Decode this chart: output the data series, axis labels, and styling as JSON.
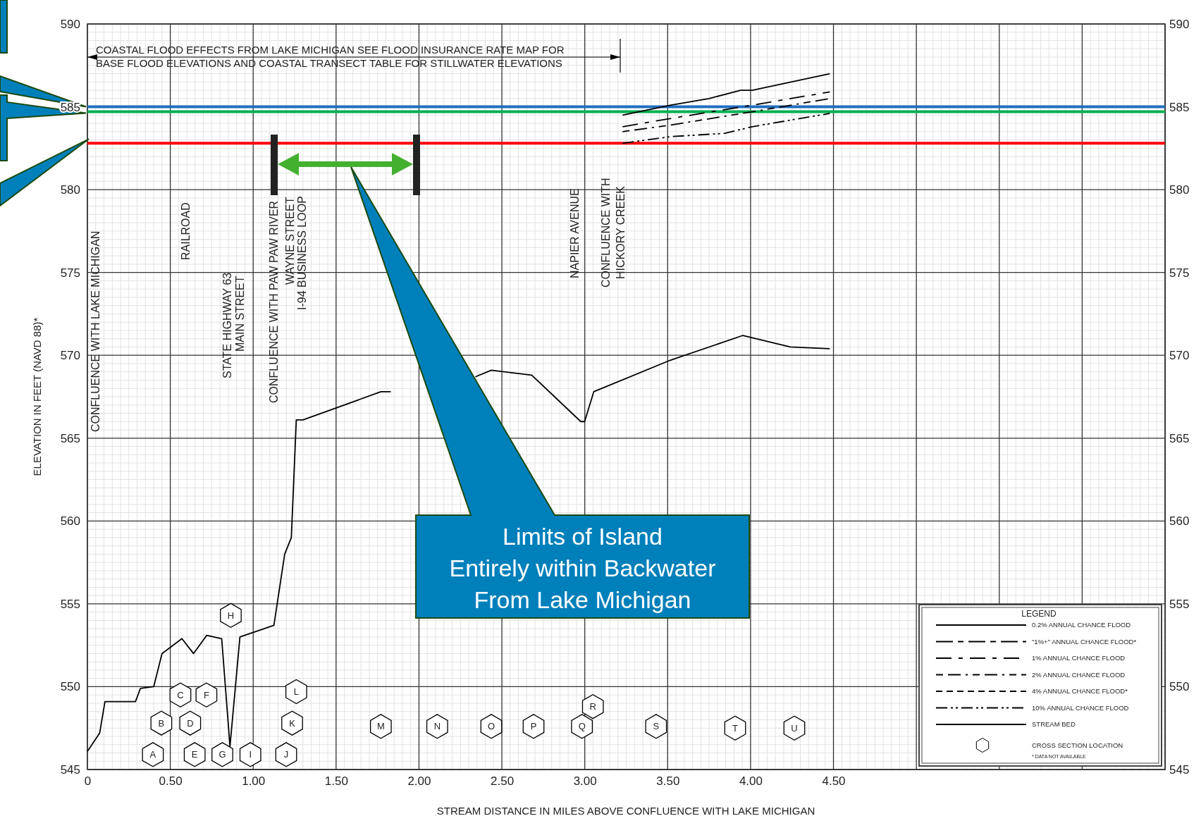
{
  "chart_data": {
    "type": "line",
    "xlabel": "STREAM DISTANCE IN MILES ABOVE CONFLUENCE WITH LAKE MICHIGAN",
    "ylabel": "ELEVATION IN FEET (NAVD 88)*",
    "legend_title": "LEGEND",
    "legend": "bottom right",
    "grid": true,
    "xlim": [
      0,
      6.5
    ],
    "xticks": [
      0,
      {
        "value": 0.5,
        "label": "0.50"
      },
      {
        "value": 1,
        "label": "1.00"
      },
      {
        "value": 1.5,
        "label": "1.50"
      },
      {
        "value": 2,
        "label": "2.00"
      },
      {
        "value": 2.5,
        "label": "2.50"
      },
      {
        "value": 3,
        "label": "3.00"
      },
      {
        "value": 3.5,
        "label": "3.50"
      },
      {
        "value": 4,
        "label": "4.00"
      },
      {
        "value": 4.5,
        "label": "4.50"
      },
      {
        "value": 5,
        "label": null
      },
      {
        "value": 5.5,
        "label": null
      },
      {
        "value": 6,
        "label": null
      },
      {
        "value": 6.5,
        "label": null
      }
    ],
    "ylim": [
      545,
      590
    ],
    "yticks": [
      545,
      550,
      555,
      560,
      565,
      570,
      575,
      580,
      585,
      590
    ],
    "y2lim": [
      545,
      590
    ],
    "y2ticks": [
      545,
      550,
      555,
      560,
      565,
      570,
      575,
      580,
      585,
      590
    ],
    "series": [
      {
        "name": "0.2% ANNUAL CHANCE FLOOD",
        "color": "#000000",
        "line_style": "solid",
        "x": [
          3.228,
          3.52,
          3.75,
          3.94,
          4.01,
          4.478
        ],
        "values": [
          584.5,
          585.1,
          585.5,
          586.0,
          586.0,
          587.0
        ]
      },
      {
        "name": "\"1%+\" ANNUAL CHANCE FLOOD*",
        "color": "#000000",
        "line_style": "dashed"
      },
      {
        "name": "1% ANNUAL CHANCE FLOOD",
        "color": "#000000",
        "line_style": "dashed",
        "x": [
          3.228,
          3.52,
          4.01,
          4.478
        ],
        "values": [
          583.8,
          584.3,
          585.1,
          585.9
        ]
      },
      {
        "name": "2% ANNUAL CHANCE FLOOD",
        "color": "#000000",
        "line_style": "dashed",
        "x": [
          3.228,
          3.52,
          4.01,
          4.478
        ],
        "values": [
          583.5,
          583.9,
          584.7,
          585.5
        ]
      },
      {
        "name": "4% ANNUAL CHANCE FLOOD*",
        "color": "#000000",
        "line_style": "dashed"
      },
      {
        "name": "10% ANNUAL CHANCE FLOOD",
        "color": "#000000",
        "line_style": "dashed",
        "x": [
          3.228,
          3.52,
          3.845,
          4.01,
          4.478
        ],
        "values": [
          582.8,
          583.2,
          583.4,
          583.8,
          584.6
        ]
      },
      {
        "name": "STREAM BED",
        "color": "#000000",
        "line_style": "solid",
        "x": [
          0,
          0.074,
          0.106,
          0.29,
          0.32,
          0.4,
          0.45,
          0.57,
          0.64,
          0.72,
          0.81,
          0.86,
          0.92,
          1.125,
          1.19,
          1.23,
          1.26,
          1.3,
          1.77,
          1.83,
          2.06,
          2.34,
          2.436,
          2.68,
          2.976,
          2.999,
          3.054,
          3.515,
          3.954,
          4.24,
          4.478
        ],
        "values": [
          546.1,
          547.2,
          549.1,
          549.1,
          549.9,
          550.0,
          552.0,
          552.9,
          552.0,
          553.1,
          552.9,
          546.4,
          553.0,
          553.7,
          558.0,
          559.0,
          566.1,
          566.1,
          567.8,
          567.8,
          null,
          568.7,
          569.1,
          568.8,
          566.0,
          566.0,
          567.8,
          569.7,
          571.2,
          570.5,
          570.4
        ]
      },
      {
        "name": "CROSS SECTION LOCATION",
        "type": "scatter",
        "color": "#000000",
        "x": [
          0.395,
          0.446,
          0.561,
          0.62,
          0.647,
          0.718,
          0.814,
          0.865,
          0.983,
          1.199,
          1.235,
          1.26,
          1.77,
          2.11,
          2.436,
          2.691,
          2.983,
          3.049,
          3.43,
          3.907,
          4.264
        ],
        "values": [
          545.9,
          547.8,
          549.5,
          547.8,
          545.9,
          549.5,
          545.9,
          554.3,
          545.9,
          545.9,
          547.8,
          549.7,
          547.6,
          547.6,
          547.6,
          547.6,
          547.6,
          548.8,
          547.6,
          547.5,
          547.5
        ],
        "value_labels": [
          "A",
          "B",
          "C",
          "D",
          "E",
          "F",
          "G",
          "H",
          "I",
          "J",
          "K",
          "L",
          "M",
          "N",
          "O",
          "P",
          "Q",
          "R",
          "S",
          "T",
          "U"
        ]
      }
    ],
    "ref_lines": [
      {
        "axis": "y",
        "value": 585.0,
        "color": "#1f6fc0"
      },
      {
        "axis": "y",
        "value": 584.7,
        "color": "#00b050"
      },
      {
        "axis": "y",
        "value": 582.8,
        "color": "#ff0000"
      }
    ],
    "annotations": [
      "COASTAL FLOOD EFFECTS FROM LAKE MICHIGAN SEE FLOOD INSURANCE RATE MAP FOR\nBASE FLOOD ELEVATIONS AND COASTAL TRANSECT TABLE FOR STILLWATER ELEVATIONS",
      "CONFLUENCE WITH LAKE MICHIGAN",
      "RAILROAD",
      "STATE HIGHWAY 63",
      "MAIN STREET",
      "CONFLUENCE WITH PAW PAW RIVER",
      "WAYNE STREET",
      "I-94 BUSINESS LOOP",
      "NAPIER AVENUE",
      "CONFLUENCE WITH",
      "HICKORY CREEK",
      "Limits of Island\nEntirely within Backwater\nFrom Lake Michigan",
      "* DATA NOT AVAILABLE"
    ]
  }
}
